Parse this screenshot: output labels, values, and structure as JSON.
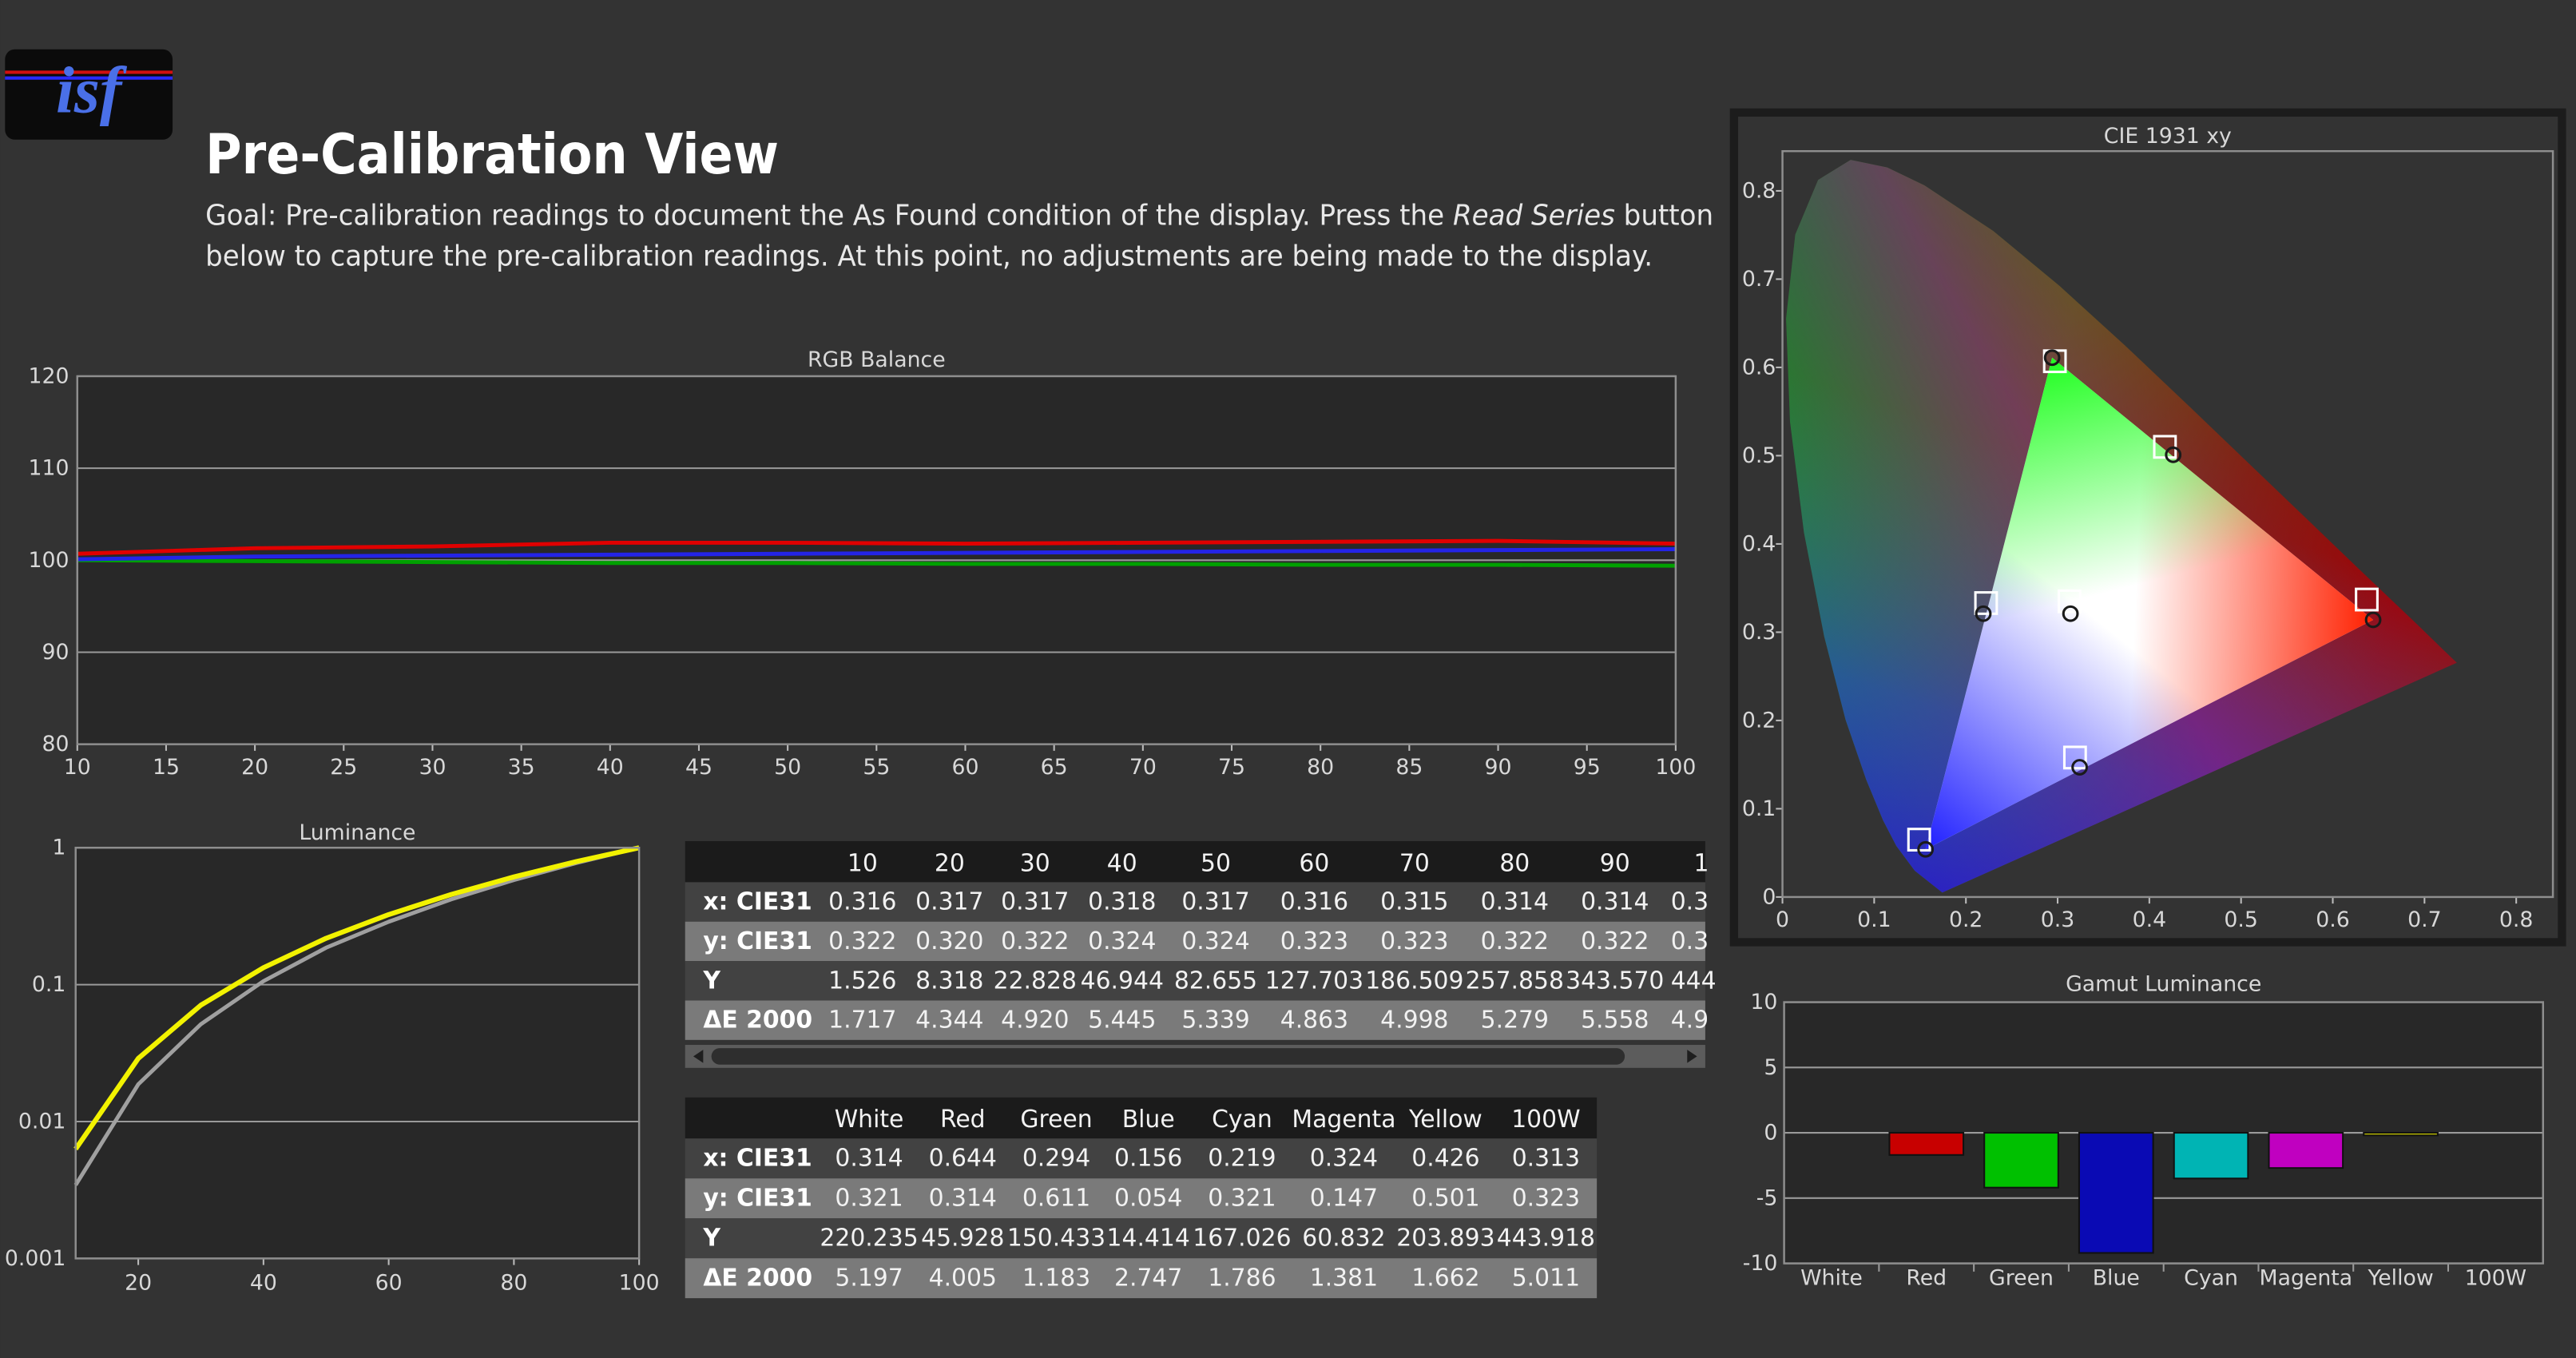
{
  "header": {
    "logo": "isf",
    "title": "Pre-Calibration View",
    "goal_line_1_start": "Goal: Pre-calibration readings to document the As Found condition of the display. Press the ",
    "goal_emphasis": "Read Series",
    "goal_line_1_end": " button",
    "goal_line_2": "below to capture the pre-calibration readings. At this point, no adjustments are being made to the display."
  },
  "chart_data": [
    {
      "type": "line",
      "title": "RGB Balance",
      "x": [
        10,
        20,
        30,
        40,
        50,
        60,
        70,
        80,
        90,
        100
      ],
      "series": [
        {
          "color": "#00a000",
          "values": [
            100.0,
            99.9,
            99.8,
            99.7,
            99.7,
            99.6,
            99.6,
            99.5,
            99.5,
            99.4
          ]
        },
        {
          "color": "#2424e6",
          "values": [
            100.1,
            100.4,
            100.5,
            100.6,
            100.7,
            100.8,
            100.9,
            101.0,
            101.1,
            101.2
          ]
        },
        {
          "color": "#e00000",
          "values": [
            100.7,
            101.3,
            101.5,
            101.9,
            101.9,
            101.8,
            101.9,
            102.0,
            102.1,
            101.8
          ]
        }
      ],
      "xlim": [
        10,
        100
      ],
      "xticks": [
        10,
        15,
        20,
        25,
        30,
        35,
        40,
        45,
        50,
        55,
        60,
        65,
        70,
        75,
        80,
        85,
        90,
        95,
        100
      ],
      "ylim": [
        80,
        120
      ],
      "yticks": [
        80,
        90,
        100,
        110,
        120
      ],
      "grid": true
    },
    {
      "type": "line",
      "title": "Luminance",
      "x": [
        10,
        20,
        30,
        40,
        50,
        60,
        70,
        80,
        90,
        100
      ],
      "series": [
        {
          "color": "#a0a0a0",
          "values": [
            0.00344,
            0.0187,
            0.0514,
            0.106,
            0.186,
            0.288,
            0.42,
            0.581,
            0.774,
            1
          ]
        },
        {
          "color": "#f2f200",
          "values": [
            0.0063,
            0.0289,
            0.0708,
            0.133,
            0.218,
            0.325,
            0.456,
            0.612,
            0.793,
            1
          ]
        }
      ],
      "xlim": [
        10,
        100
      ],
      "xticks": [
        20,
        40,
        60,
        80,
        100
      ],
      "ylim": [
        0.001,
        1
      ],
      "yticks": [
        0.001,
        0.01,
        0.1,
        1
      ],
      "log_y": true,
      "grid": true
    },
    {
      "type": "scatter",
      "title": "CIE 1931 xy",
      "series": [
        {
          "marker": "square",
          "color": "#ffffff",
          "x": [
            0.313,
            0.637,
            0.297,
            0.149,
            0.222,
            0.319,
            0.417
          ],
          "values": [
            0.335,
            0.337,
            0.607,
            0.065,
            0.333,
            0.158,
            0.51
          ]
        },
        {
          "marker": "circle",
          "color": "#1a1a1a",
          "x": [
            0.314,
            0.644,
            0.294,
            0.156,
            0.219,
            0.324,
            0.426
          ],
          "values": [
            0.321,
            0.314,
            0.611,
            0.054,
            0.321,
            0.147,
            0.501
          ]
        }
      ],
      "xlim": [
        0,
        0.84
      ],
      "xticks": [
        0,
        0.1,
        0.2,
        0.3,
        0.4,
        0.5,
        0.6,
        0.7,
        0.8
      ],
      "ylim": [
        0,
        0.845
      ],
      "yticks": [
        0,
        0.1,
        0.2,
        0.3,
        0.4,
        0.5,
        0.6,
        0.7,
        0.8
      ],
      "grid": false
    },
    {
      "type": "bar",
      "title": "Gamut Luminance",
      "categories": [
        "White",
        "Red",
        "Green",
        "Blue",
        "Cyan",
        "Magenta",
        "Yellow",
        "100W"
      ],
      "values": [
        0,
        -1.7,
        -4.2,
        -9.2,
        -3.5,
        -2.7,
        -0.2,
        0
      ],
      "colors": [
        "#d0d0d0",
        "#c80000",
        "#00c000",
        "#0a0ab4",
        "#00b4b4",
        "#c000c0",
        "#d0d000",
        "#d0d0d0"
      ],
      "ylim": [
        -10,
        10
      ],
      "yticks": [
        -10,
        -5,
        0,
        5,
        10
      ],
      "grid": true
    }
  ],
  "tables": [
    {
      "columns": [
        "10",
        "20",
        "30",
        "40",
        "50",
        "60",
        "70",
        "80",
        "90",
        "1"
      ],
      "rows": [
        {
          "label": "x: CIE31",
          "cells": [
            "0.316",
            "0.317",
            "0.317",
            "0.318",
            "0.317",
            "0.316",
            "0.315",
            "0.314",
            "0.314",
            "0.3"
          ]
        },
        {
          "label": "y: CIE31",
          "cells": [
            "0.322",
            "0.320",
            "0.322",
            "0.324",
            "0.324",
            "0.323",
            "0.323",
            "0.322",
            "0.322",
            "0.3"
          ]
        },
        {
          "label": "Y",
          "cells": [
            "1.526",
            "8.318",
            "22.828",
            "46.944",
            "82.655",
            "127.703",
            "186.509",
            "257.858",
            "343.570",
            "444"
          ]
        },
        {
          "label": "ΔE 2000",
          "cells": [
            "1.717",
            "4.344",
            "4.920",
            "5.445",
            "5.339",
            "4.863",
            "4.998",
            "5.279",
            "5.558",
            "4.9"
          ]
        }
      ]
    },
    {
      "columns": [
        "White",
        "Red",
        "Green",
        "Blue",
        "Cyan",
        "Magenta",
        "Yellow",
        "100W"
      ],
      "rows": [
        {
          "label": "x: CIE31",
          "cells": [
            "0.314",
            "0.644",
            "0.294",
            "0.156",
            "0.219",
            "0.324",
            "0.426",
            "0.313"
          ]
        },
        {
          "label": "y: CIE31",
          "cells": [
            "0.321",
            "0.314",
            "0.611",
            "0.054",
            "0.321",
            "0.147",
            "0.501",
            "0.323"
          ]
        },
        {
          "label": "Y",
          "cells": [
            "220.235",
            "45.928",
            "150.433",
            "14.414",
            "167.026",
            "60.832",
            "203.893",
            "443.918"
          ]
        },
        {
          "label": "ΔE 2000",
          "cells": [
            "5.197",
            "4.005",
            "1.183",
            "2.747",
            "1.786",
            "1.381",
            "1.662",
            "5.011"
          ]
        }
      ]
    }
  ]
}
